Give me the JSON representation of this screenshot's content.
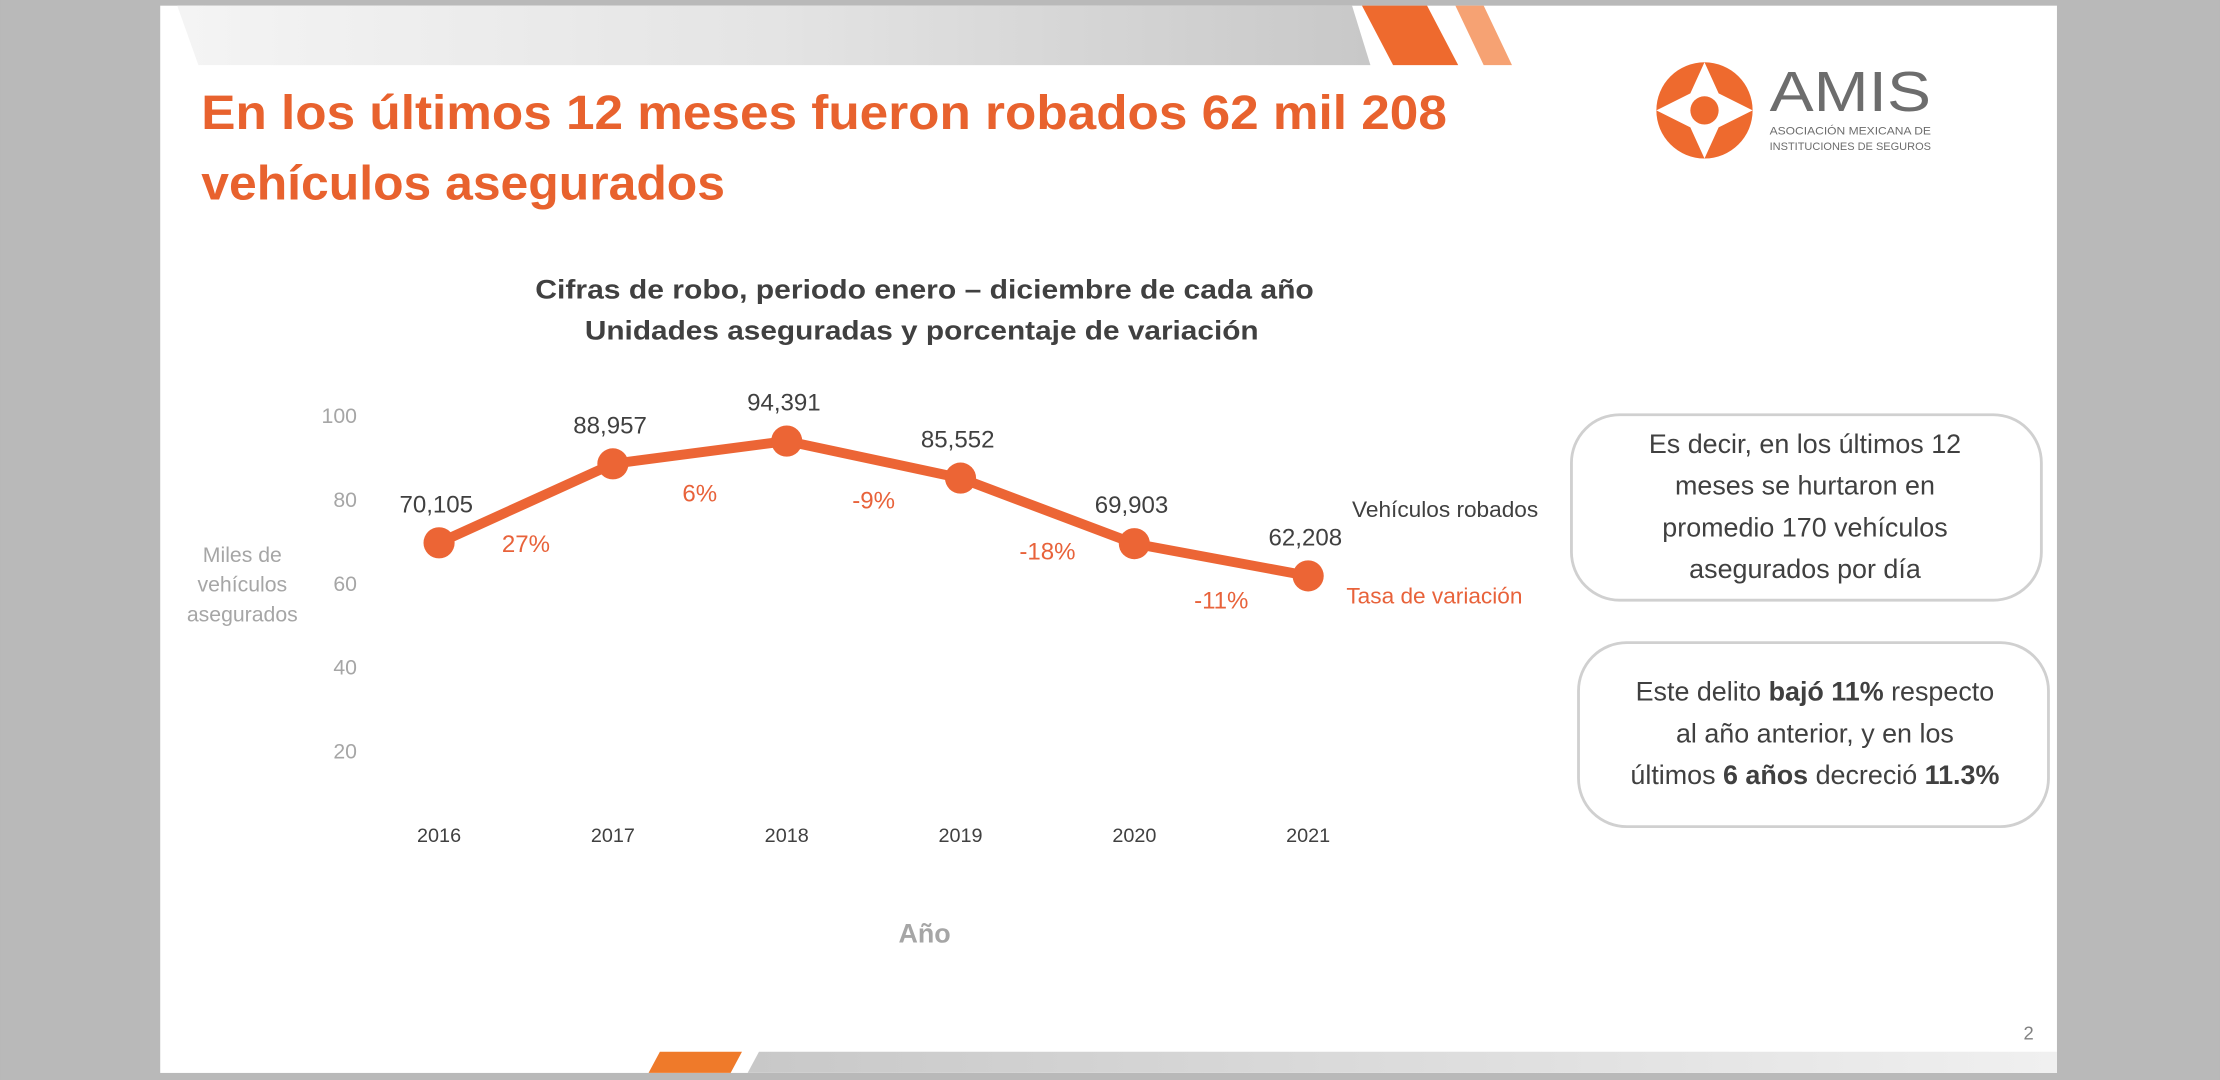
{
  "slide_title": [
    "En los últimos 12 meses fueron robados 62 mil 208",
    "vehículos asegurados"
  ],
  "logo": {
    "name": "AMIS",
    "subtitle": [
      "ASOCIACIÓN MEXICANA DE",
      "INSTITUCIONES DE SEGUROS"
    ]
  },
  "chart_data": {
    "type": "line",
    "title": [
      "Cifras de robo, periodo enero – diciembre de cada año",
      "Unidades aseguradas y porcentaje de variación"
    ],
    "y_label": [
      "Miles de",
      "vehículos",
      "asegurados"
    ],
    "x_label": "Año",
    "categories": [
      "2016",
      "2017",
      "2018",
      "2019",
      "2020",
      "2021"
    ],
    "series": [
      {
        "name": "Vehículos robados",
        "color": "#ec6535",
        "values": [
          70.105,
          88.957,
          94.391,
          85.552,
          69.903,
          62.208
        ],
        "value_labels": [
          "70,105",
          "88,957",
          "94,391",
          "85,552",
          "69,903",
          "62,208"
        ]
      },
      {
        "name": "Tasa de variación",
        "color": "#e8623a",
        "values": [
          null,
          27,
          6,
          -9,
          -18,
          -11
        ],
        "value_labels": [
          null,
          "27%",
          "6%",
          "-9%",
          "-18%",
          "-11%"
        ]
      }
    ],
    "ylim": [
      0,
      100
    ],
    "yticks": [
      20,
      40,
      60,
      80,
      100
    ],
    "grid": false
  },
  "callouts": [
    [
      [
        "Es decir, en los últimos 12"
      ],
      [
        "meses se hurtaron en"
      ],
      [
        "promedio 170 vehículos"
      ],
      [
        "asegurados por día"
      ]
    ],
    [
      [
        "Este delito ",
        {
          "text": "bajó 11%",
          "bold": true
        },
        " respecto"
      ],
      [
        "al año anterior, y en los"
      ],
      [
        "últimos ",
        {
          "text": "6 años",
          "bold": true
        },
        " decreció ",
        {
          "text": "11.3%",
          "bold": true
        }
      ]
    ]
  ],
  "page_number": "2"
}
